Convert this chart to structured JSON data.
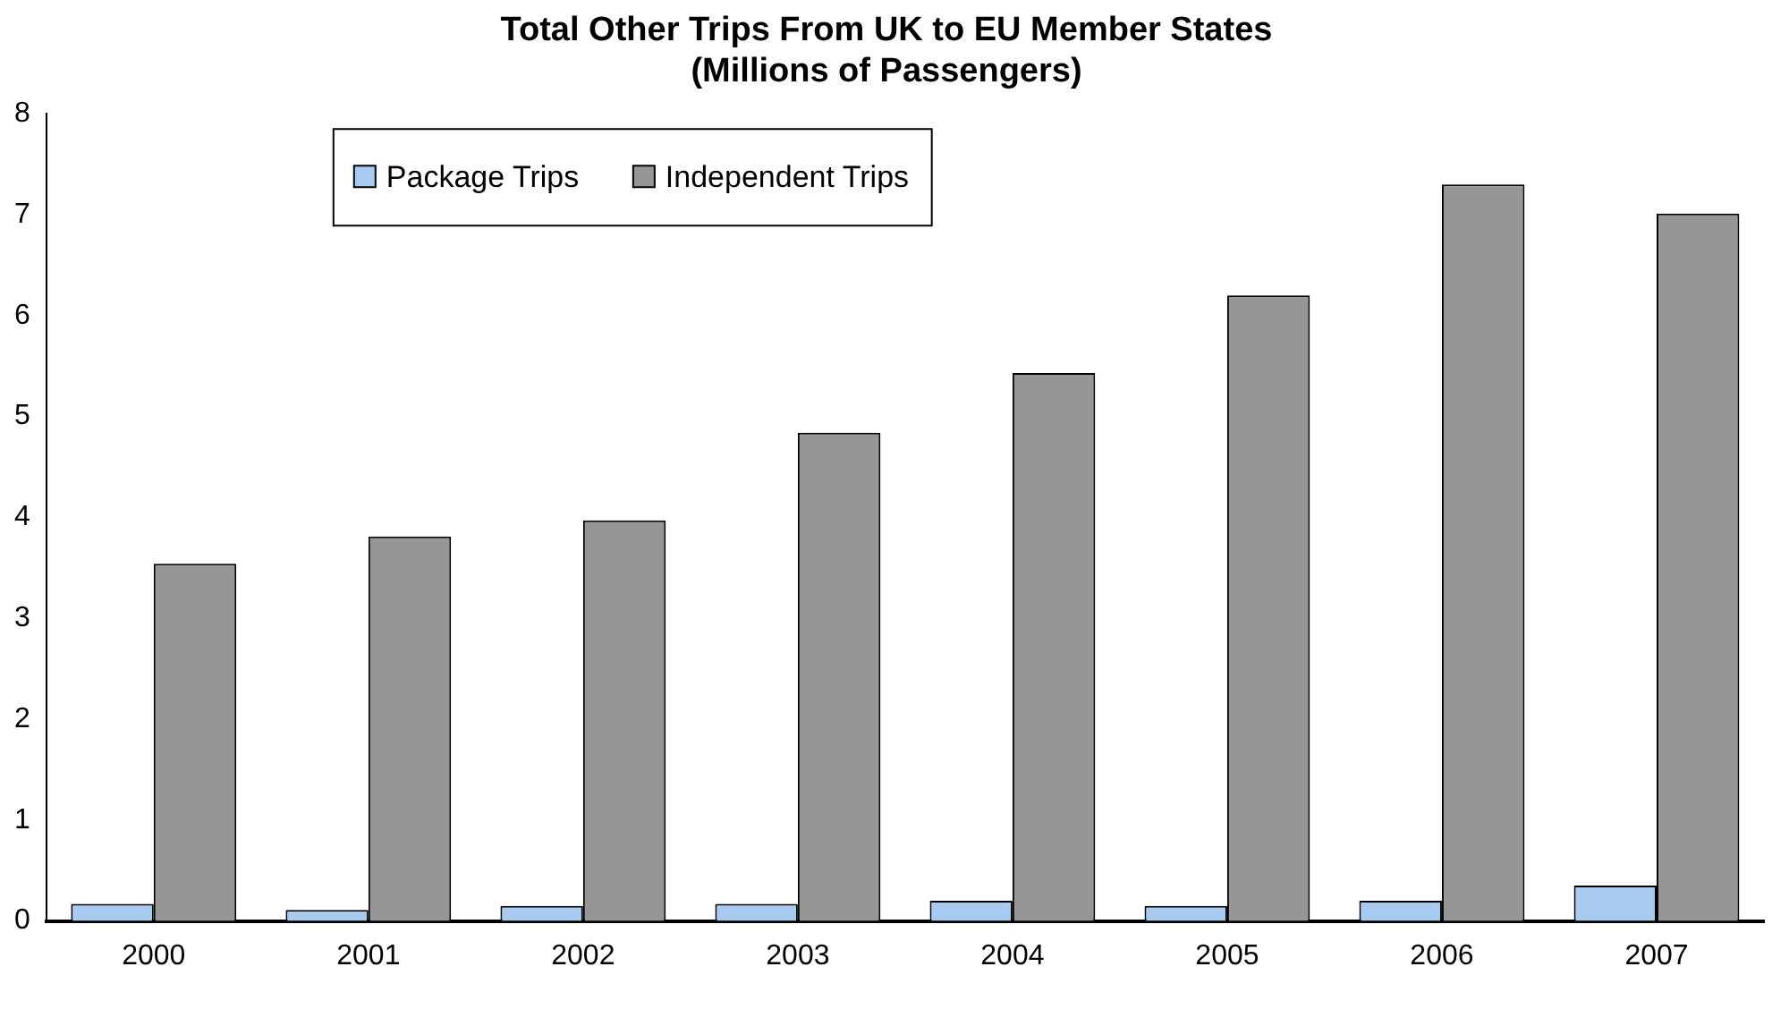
{
  "chart_data": {
    "type": "bar",
    "title": [
      "Total Other Trips From UK to EU Member States",
      "(Millions of Passengers)"
    ],
    "categories": [
      "2000",
      "2001",
      "2002",
      "2003",
      "2004",
      "2005",
      "2006",
      "2007"
    ],
    "series": [
      {
        "name": "Package Trips",
        "color": "#a6caf0",
        "values": [
          0.17,
          0.11,
          0.15,
          0.17,
          0.2,
          0.15,
          0.2,
          0.35
        ]
      },
      {
        "name": "Independent Trips",
        "color": "#969696",
        "values": [
          3.54,
          3.81,
          3.97,
          4.84,
          5.43,
          6.2,
          7.3,
          7.01
        ]
      }
    ],
    "ylim": [
      0,
      8
    ],
    "yticks": [
      0,
      1,
      2,
      3,
      4,
      5,
      6,
      7,
      8
    ],
    "grid": false,
    "legend": "top"
  }
}
